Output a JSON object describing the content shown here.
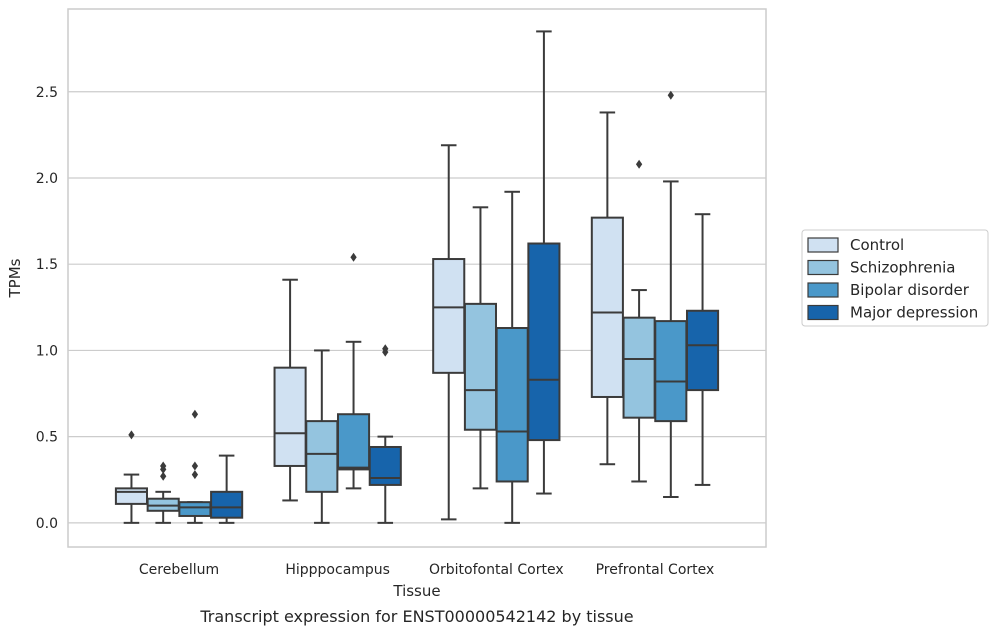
{
  "chart_data": {
    "type": "box",
    "caption": "Transcript expression for ENST00000542142 by tissue",
    "xlabel": "Tissue",
    "ylabel": "TPMs",
    "ylim": [
      -0.14,
      2.98
    ],
    "yticks": [
      0.0,
      0.5,
      1.0,
      1.5,
      2.0,
      2.5
    ],
    "ytick_labels": [
      "0.0",
      "0.5",
      "1.0",
      "1.5",
      "2.0",
      "2.5"
    ],
    "grid": "horizontal",
    "legend_position": "right",
    "categories": [
      "Cerebellum",
      "Hipppocampus",
      "Orbitofontal Cortex",
      "Prefrontal Cortex"
    ],
    "series": [
      {
        "name": "Control",
        "color": "#d0e1f2",
        "boxes": [
          {
            "q1": 0.11,
            "median": 0.18,
            "q3": 0.2,
            "whisker_low": 0.0,
            "whisker_high": 0.28,
            "outliers": [
              0.51
            ]
          },
          {
            "q1": 0.33,
            "median": 0.52,
            "q3": 0.9,
            "whisker_low": 0.13,
            "whisker_high": 1.41,
            "outliers": []
          },
          {
            "q1": 0.87,
            "median": 1.25,
            "q3": 1.53,
            "whisker_low": 0.02,
            "whisker_high": 2.19,
            "outliers": []
          },
          {
            "q1": 0.73,
            "median": 1.22,
            "q3": 1.77,
            "whisker_low": 0.34,
            "whisker_high": 2.38,
            "outliers": []
          }
        ]
      },
      {
        "name": "Schizophrenia",
        "color": "#94c4df",
        "boxes": [
          {
            "q1": 0.07,
            "median": 0.1,
            "q3": 0.14,
            "whisker_low": 0.0,
            "whisker_high": 0.18,
            "outliers": [
              0.27,
              0.31,
              0.33
            ]
          },
          {
            "q1": 0.18,
            "median": 0.4,
            "q3": 0.59,
            "whisker_low": 0.0,
            "whisker_high": 1.0,
            "outliers": []
          },
          {
            "q1": 0.54,
            "median": 0.77,
            "q3": 1.27,
            "whisker_low": 0.2,
            "whisker_high": 1.83,
            "outliers": []
          },
          {
            "q1": 0.61,
            "median": 0.95,
            "q3": 1.19,
            "whisker_low": 0.24,
            "whisker_high": 1.35,
            "outliers": [
              2.08
            ]
          }
        ]
      },
      {
        "name": "Bipolar disorder",
        "color": "#4a98c9",
        "boxes": [
          {
            "q1": 0.04,
            "median": 0.09,
            "q3": 0.12,
            "whisker_low": 0.0,
            "whisker_high": 0.12,
            "outliers": [
              0.28,
              0.33,
              0.63
            ]
          },
          {
            "q1": 0.31,
            "median": 0.32,
            "q3": 0.63,
            "whisker_low": 0.2,
            "whisker_high": 1.05,
            "outliers": [
              1.54
            ]
          },
          {
            "q1": 0.24,
            "median": 0.53,
            "q3": 1.13,
            "whisker_low": 0.0,
            "whisker_high": 1.92,
            "outliers": []
          },
          {
            "q1": 0.59,
            "median": 0.82,
            "q3": 1.17,
            "whisker_low": 0.15,
            "whisker_high": 1.98,
            "outliers": [
              2.48
            ]
          }
        ]
      },
      {
        "name": "Major depression",
        "color": "#1764ab",
        "boxes": [
          {
            "q1": 0.03,
            "median": 0.09,
            "q3": 0.18,
            "whisker_low": 0.0,
            "whisker_high": 0.39,
            "outliers": []
          },
          {
            "q1": 0.22,
            "median": 0.26,
            "q3": 0.44,
            "whisker_low": 0.0,
            "whisker_high": 0.5,
            "outliers": [
              0.99,
              1.01
            ]
          },
          {
            "q1": 0.48,
            "median": 0.83,
            "q3": 1.62,
            "whisker_low": 0.17,
            "whisker_high": 2.85,
            "outliers": []
          },
          {
            "q1": 0.77,
            "median": 1.03,
            "q3": 1.23,
            "whisker_low": 0.22,
            "whisker_high": 1.79,
            "outliers": []
          }
        ]
      }
    ]
  }
}
